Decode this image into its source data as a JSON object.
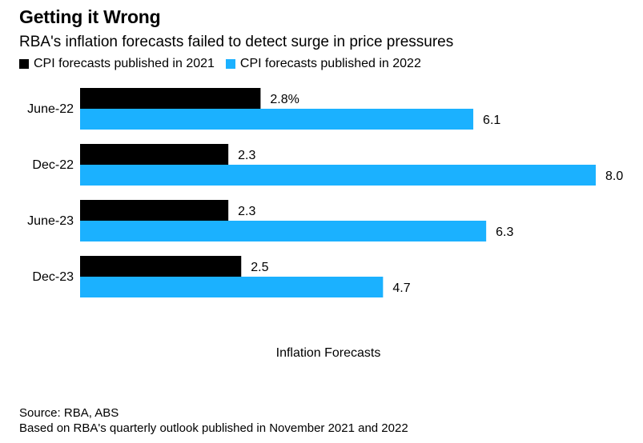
{
  "header": {
    "title": "Getting it Wrong",
    "subtitle": "RBA's inflation forecasts failed to detect surge in price pressures"
  },
  "colors": {
    "series_2021": "#000000",
    "series_2022": "#1bb1ff"
  },
  "chart_data": {
    "type": "bar",
    "orientation": "horizontal",
    "categories": [
      "June-22",
      "Dec-22",
      "June-23",
      "Dec-23"
    ],
    "series": [
      {
        "name": "CPI forecasts published in 2021",
        "values": [
          2.8,
          2.3,
          2.3,
          2.5
        ],
        "labels": [
          "2.8%",
          "2.3",
          "2.3",
          "2.5"
        ]
      },
      {
        "name": "CPI forecasts published in 2022",
        "values": [
          6.1,
          8.0,
          6.3,
          4.7
        ],
        "labels": [
          "6.1",
          "8.0",
          "6.3",
          "4.7"
        ]
      }
    ],
    "xlabel": "Inflation Forecasts",
    "xlim": [
      0,
      8.5
    ],
    "grid": false,
    "legend_position": "top-left"
  },
  "footer": {
    "source": "Source: RBA, ABS",
    "note": "Based on RBA's quarterly outlook published in November 2021 and 2022"
  }
}
